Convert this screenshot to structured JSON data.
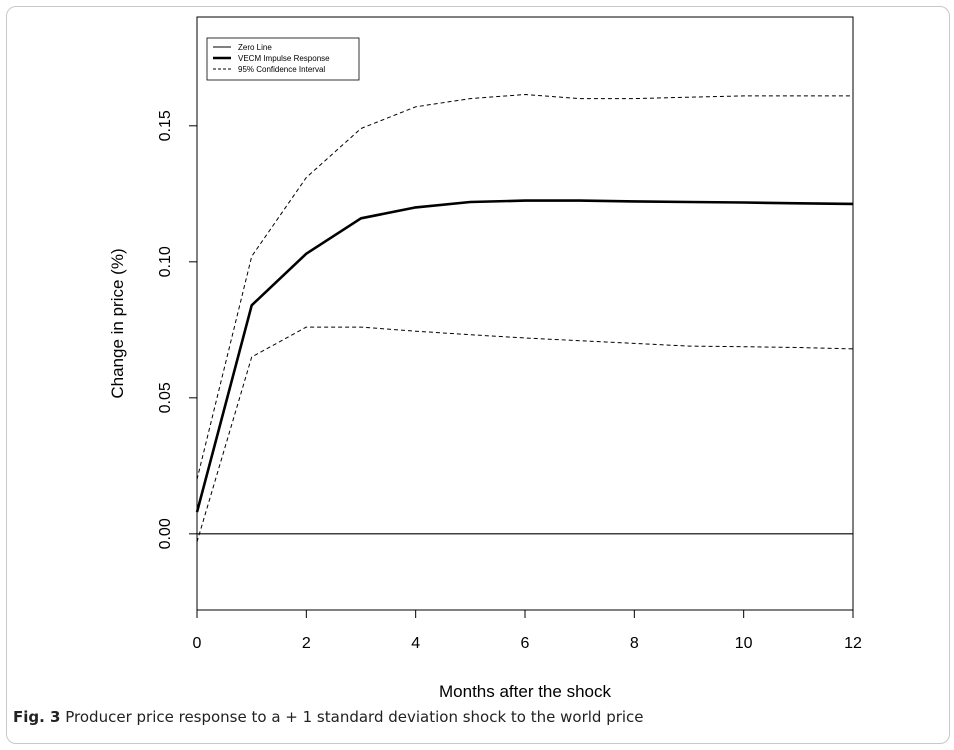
{
  "caption": {
    "label": "Fig. 3",
    "text": "Producer price response to a + 1 standard deviation shock to the world price"
  },
  "chart_data": {
    "type": "line",
    "title": "",
    "xlabel": "Months after the shock",
    "ylabel": "Change in price (%)",
    "xlim": [
      0,
      12
    ],
    "ylim": [
      -0.028,
      0.19
    ],
    "x_ticks": [
      0,
      2,
      4,
      6,
      8,
      10,
      12
    ],
    "x_tick_labels": [
      "0",
      "2",
      "4",
      "6",
      "8",
      "10",
      "12"
    ],
    "y_ticks": [
      0.0,
      0.05,
      0.1,
      0.15
    ],
    "y_tick_labels": [
      "0.00",
      "0.05",
      "0.10",
      "0.15"
    ],
    "grid": false,
    "legend_position": "top-left",
    "x": [
      0,
      1,
      2,
      3,
      4,
      5,
      6,
      7,
      8,
      9,
      10,
      11,
      12
    ],
    "series": [
      {
        "name": "Zero Line",
        "style": "thin-solid",
        "color": "#000000",
        "values": [
          0,
          0,
          0,
          0,
          0,
          0,
          0,
          0,
          0,
          0,
          0,
          0,
          0
        ]
      },
      {
        "name": "VECM Impulse Response",
        "style": "thick-solid",
        "color": "#000000",
        "values": [
          0.008,
          0.084,
          0.103,
          0.116,
          0.12,
          0.122,
          0.1225,
          0.1225,
          0.1222,
          0.122,
          0.1218,
          0.1215,
          0.1213
        ]
      },
      {
        "name": "95% Confidence Interval",
        "style": "dashed",
        "color": "#000000",
        "values": [
          0.02,
          0.102,
          0.131,
          0.149,
          0.157,
          0.16,
          0.1615,
          0.16,
          0.16,
          0.1605,
          0.161,
          0.161,
          0.161
        ]
      },
      {
        "name": "",
        "style": "dashed",
        "color": "#000000",
        "values": [
          -0.003,
          0.065,
          0.076,
          0.076,
          0.0745,
          0.0732,
          0.072,
          0.071,
          0.07,
          0.069,
          0.0688,
          0.0685,
          0.068
        ]
      }
    ]
  }
}
